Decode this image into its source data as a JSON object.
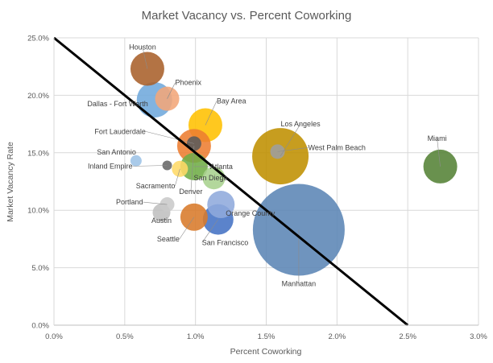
{
  "chart_data": {
    "type": "scatter",
    "title": "Market Vacancy vs. Percent Coworking",
    "xlabel": "Percent Coworking",
    "ylabel": "Market Vacancy Rate",
    "xlim": [
      0,
      0.03
    ],
    "ylim": [
      0,
      0.25
    ],
    "x_ticks": [
      {
        "v": 0.0,
        "label": "0.0%"
      },
      {
        "v": 0.005,
        "label": "0.5%"
      },
      {
        "v": 0.01,
        "label": "1.0%"
      },
      {
        "v": 0.015,
        "label": "1.5%"
      },
      {
        "v": 0.02,
        "label": "2.0%"
      },
      {
        "v": 0.025,
        "label": "2.5%"
      },
      {
        "v": 0.03,
        "label": "3.0%"
      }
    ],
    "y_ticks": [
      {
        "v": 0.0,
        "label": "0.0%"
      },
      {
        "v": 0.05,
        "label": "5.0%"
      },
      {
        "v": 0.1,
        "label": "10.0%"
      },
      {
        "v": 0.15,
        "label": "15.0%"
      },
      {
        "v": 0.2,
        "label": "20.0%"
      },
      {
        "v": 0.25,
        "label": "25.0%"
      }
    ],
    "grid": "vertical and horizontal",
    "trendline": {
      "from": [
        0.0,
        0.25
      ],
      "to": [
        0.025,
        0.0
      ],
      "color": "#000000"
    },
    "points": [
      {
        "name": "Houston",
        "x": 0.0066,
        "y": 0.223,
        "size": 21,
        "color": "#A9602A",
        "label_text": "Houston",
        "label_anchor": "middle",
        "label_dx": -6,
        "label_dy": -24
      },
      {
        "name": "Phoenix",
        "x": 0.008,
        "y": 0.197,
        "size": 15,
        "color": "#F2A679",
        "label_text": "Phoenix",
        "label_anchor": "start",
        "label_dx": 10,
        "label_dy": -17
      },
      {
        "name": "Dallas - Fort Worth",
        "x": 0.0071,
        "y": 0.196,
        "size": 22,
        "color": "#6FA8DC",
        "label_text": "Dallas - Fort Worth",
        "label_anchor": "end",
        "label_dx": -8,
        "label_dy": 8
      },
      {
        "name": "Bay Area",
        "x": 0.0107,
        "y": 0.174,
        "size": 21,
        "color": "#FFC000",
        "label_text": "Bay Area",
        "label_anchor": "start",
        "label_dx": 14,
        "label_dy": -27
      },
      {
        "name": "Los Angeles",
        "x": 0.016,
        "y": 0.147,
        "size": 35,
        "color": "#BF9000",
        "label_text": "Los Angeles",
        "label_anchor": "middle",
        "label_dx": 25,
        "label_dy": -37
      },
      {
        "name": "West Palm Beach",
        "x": 0.0158,
        "y": 0.151,
        "size": 9,
        "color": "#9E9E9E",
        "label_text": "West Palm Beach",
        "label_anchor": "start",
        "label_dx": 38,
        "label_dy": -2
      },
      {
        "name": "Miami",
        "x": 0.0273,
        "y": 0.138,
        "size": 21,
        "color": "#548235",
        "label_text": "Miami",
        "label_anchor": "middle",
        "label_dx": -4,
        "label_dy": -32
      },
      {
        "name": "Fort Lauderdale",
        "x": 0.0099,
        "y": 0.158,
        "size": 9,
        "color": "#5A5A5A",
        "label_text": "Fort Lauderdale",
        "label_anchor": "end",
        "label_dx": -60,
        "label_dy": -12
      },
      {
        "name": "San Antonio",
        "x": 0.0058,
        "y": 0.143,
        "size": 7,
        "color": "#9DC3E6",
        "label_text": "San Antonio",
        "label_anchor": "end",
        "label_dx": 0,
        "label_dy": -8
      },
      {
        "name": "Inland Empire",
        "x": 0.008,
        "y": 0.139,
        "size": 6,
        "color": "#666666",
        "label_text": "Inland Empire",
        "label_anchor": "end",
        "label_dx": -43,
        "label_dy": 4
      },
      {
        "name": "Sacramento",
        "x": 0.0089,
        "y": 0.136,
        "size": 10,
        "color": "#FFD966",
        "label_text": "Sacramento",
        "label_anchor": "end",
        "label_dx": -6,
        "label_dy": 24
      },
      {
        "name": "Atlanta",
        "x": 0.0099,
        "y": 0.138,
        "size": 17,
        "color": "#70AD47",
        "label_text": "Atlanta",
        "label_anchor": "start",
        "label_dx": 20,
        "label_dy": 3
      },
      {
        "name": "San Diego",
        "x": 0.0113,
        "y": 0.128,
        "size": 14,
        "color": "#A9D18E",
        "label_text": "San Diego",
        "label_anchor": "middle",
        "label_dx": -4,
        "label_dy": 3
      },
      {
        "name": "Denver",
        "x": 0.0099,
        "y": 0.156,
        "size": 21,
        "color": "#ED7D31",
        "label_text": "Denver",
        "label_anchor": "middle",
        "label_dx": -4,
        "label_dy": 60
      },
      {
        "name": "Portland",
        "x": 0.008,
        "y": 0.105,
        "size": 9,
        "color": "#C9C9C9",
        "label_text": "Portland",
        "label_anchor": "end",
        "label_dx": -30,
        "label_dy": 0
      },
      {
        "name": "Austin",
        "x": 0.0076,
        "y": 0.098,
        "size": 11,
        "color": "#BFBFBF",
        "label_text": "Austin",
        "label_anchor": "middle",
        "label_dx": 0,
        "label_dy": 13
      },
      {
        "name": "Orange County",
        "x": 0.0118,
        "y": 0.105,
        "size": 17,
        "color": "#8FAADC",
        "label_text": "Orange County",
        "label_anchor": "start",
        "label_dx": 6,
        "label_dy": 14
      },
      {
        "name": "Seattle",
        "x": 0.0099,
        "y": 0.094,
        "size": 17,
        "color": "#D87A2A",
        "label_text": "Seattle",
        "label_anchor": "end",
        "label_dx": -18,
        "label_dy": 30
      },
      {
        "name": "San Francisco",
        "x": 0.0116,
        "y": 0.092,
        "size": 19,
        "color": "#4472C4",
        "label_text": "San Francisco",
        "label_anchor": "start",
        "label_dx": -20,
        "label_dy": 32
      },
      {
        "name": "Manhattan",
        "x": 0.0173,
        "y": 0.083,
        "size": 57,
        "color": "#5B85B5",
        "label_text": "Manhattan",
        "label_anchor": "middle",
        "label_dx": 0,
        "label_dy": 70
      }
    ]
  }
}
